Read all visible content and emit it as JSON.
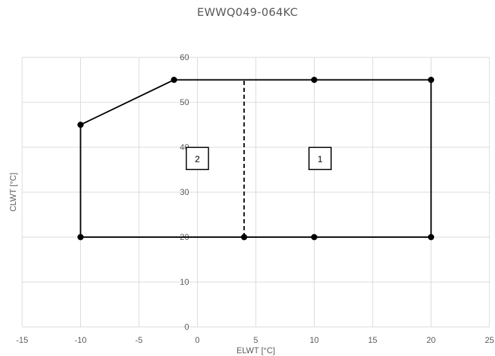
{
  "chart_data": {
    "type": "line",
    "title": "EWWQ049-064KC",
    "xlabel": "ELWT [°C]",
    "ylabel": "CLWT [°C]",
    "xlim": [
      -15,
      25
    ],
    "ylim": [
      0,
      60
    ],
    "x_ticks": [
      "-15",
      "-10",
      "-5",
      "0",
      "5",
      "10",
      "15",
      "20",
      "25"
    ],
    "y_ticks": [
      "0",
      "10",
      "20",
      "30",
      "40",
      "50",
      "60"
    ],
    "grid": true,
    "envelope": [
      {
        "x": -10,
        "y": 20
      },
      {
        "x": -10,
        "y": 45
      },
      {
        "x": -2,
        "y": 55
      },
      {
        "x": 10,
        "y": 55
      },
      {
        "x": 20,
        "y": 55
      },
      {
        "x": 20,
        "y": 20
      },
      {
        "x": 10,
        "y": 20
      },
      {
        "x": 4,
        "y": 20
      }
    ],
    "divider": [
      {
        "x": 4,
        "y": 20
      },
      {
        "x": 4,
        "y": 55
      }
    ],
    "zones": [
      {
        "label": "1",
        "x": 10.5,
        "y": 37.5
      },
      {
        "label": "2",
        "x": 0,
        "y": 37.5
      }
    ]
  }
}
